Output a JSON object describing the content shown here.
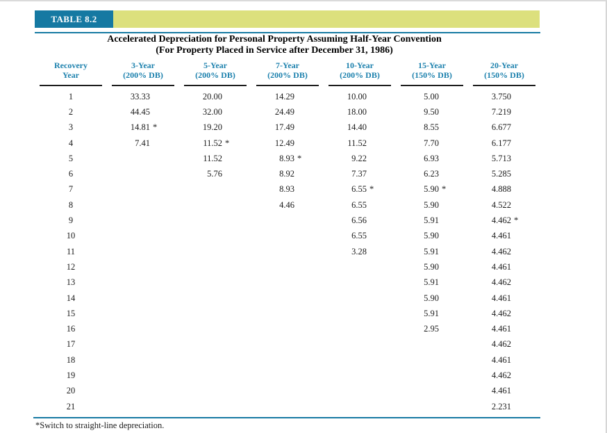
{
  "header": {
    "table_label": "TABLE 8.2",
    "title_line1": "Accelerated Depreciation for Personal Property Assuming Half-Year Convention",
    "title_line2": "(For Property Placed in Service after December 31, 1986)"
  },
  "colors": {
    "teal": "#1579a2",
    "olive_bar": "#dce07d",
    "header_text": "#1b80ad",
    "underline": "#1c1c1c"
  },
  "footnote": "*Switch to straight-line depreciation.",
  "table": {
    "headers": [
      {
        "line1": "Recovery",
        "line2": "Year"
      },
      {
        "line1": "3-Year",
        "line2": "(200% DB)"
      },
      {
        "line1": "5-Year",
        "line2": "(200% DB)"
      },
      {
        "line1": "7-Year",
        "line2": "(200% DB)"
      },
      {
        "line1": "10-Year",
        "line2": "(200% DB)"
      },
      {
        "line1": "15-Year",
        "line2": "(150% DB)"
      },
      {
        "line1": "20-Year",
        "line2": "(150% DB)"
      }
    ],
    "rows": [
      [
        "1",
        "33.33",
        "20.00",
        "14.29",
        "10.00",
        "5.00",
        "3.750"
      ],
      [
        "2",
        "44.45",
        "32.00",
        "24.49",
        "18.00",
        "9.50",
        "7.219"
      ],
      [
        "3",
        "14.81*",
        "19.20",
        "17.49",
        "14.40",
        "8.55",
        "6.677"
      ],
      [
        "4",
        "7.41",
        "11.52*",
        "12.49",
        "11.52",
        "7.70",
        "6.177"
      ],
      [
        "5",
        "",
        "11.52",
        "8.93*",
        "9.22",
        "6.93",
        "5.713"
      ],
      [
        "6",
        "",
        "5.76",
        "8.92",
        "7.37",
        "6.23",
        "5.285"
      ],
      [
        "7",
        "",
        "",
        "8.93",
        "6.55*",
        "5.90*",
        "4.888"
      ],
      [
        "8",
        "",
        "",
        "4.46",
        "6.55",
        "5.90",
        "4.522"
      ],
      [
        "9",
        "",
        "",
        "",
        "6.56",
        "5.91",
        "4.462*"
      ],
      [
        "10",
        "",
        "",
        "",
        "6.55",
        "5.90",
        "4.461"
      ],
      [
        "11",
        "",
        "",
        "",
        "3.28",
        "5.91",
        "4.462"
      ],
      [
        "12",
        "",
        "",
        "",
        "",
        "5.90",
        "4.461"
      ],
      [
        "13",
        "",
        "",
        "",
        "",
        "5.91",
        "4.462"
      ],
      [
        "14",
        "",
        "",
        "",
        "",
        "5.90",
        "4.461"
      ],
      [
        "15",
        "",
        "",
        "",
        "",
        "5.91",
        "4.462"
      ],
      [
        "16",
        "",
        "",
        "",
        "",
        "2.95",
        "4.461"
      ],
      [
        "17",
        "",
        "",
        "",
        "",
        "",
        "4.462"
      ],
      [
        "18",
        "",
        "",
        "",
        "",
        "",
        "4.461"
      ],
      [
        "19",
        "",
        "",
        "",
        "",
        "",
        "4.462"
      ],
      [
        "20",
        "",
        "",
        "",
        "",
        "",
        "4.461"
      ],
      [
        "21",
        "",
        "",
        "",
        "",
        "",
        "2.231"
      ]
    ]
  }
}
